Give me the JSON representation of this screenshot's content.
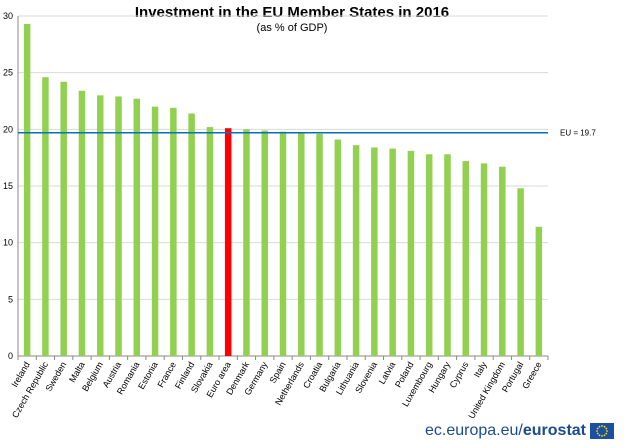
{
  "chart_data": {
    "type": "bar",
    "title": "Investment in the EU Member States in 2016",
    "subtitle": "(as % of GDP)",
    "categories": [
      "Ireland",
      "Czech Republic",
      "Sweden",
      "Malta",
      "Belgium",
      "Austria",
      "Romania",
      "Estonia",
      "France",
      "Finland",
      "Slovakia",
      "Euro area",
      "Denmark",
      "Germany",
      "Spain",
      "Netherlands",
      "Croatia",
      "Bulgaria",
      "Lithuania",
      "Slovenia",
      "Latvia",
      "Poland",
      "Luxembourg",
      "Hungary",
      "Cyprus",
      "Italy",
      "United Kingdom",
      "Portugal",
      "Greece"
    ],
    "values": [
      29.3,
      24.6,
      24.2,
      23.4,
      23.0,
      22.9,
      22.7,
      22.0,
      21.9,
      21.4,
      20.2,
      20.1,
      20.0,
      19.9,
      19.8,
      19.7,
      19.6,
      19.1,
      18.6,
      18.4,
      18.3,
      18.1,
      17.8,
      17.8,
      17.2,
      17.0,
      16.7,
      14.8,
      11.4
    ],
    "highlight_category": "Euro area",
    "bar_color": "#92d050",
    "highlight_color": "#ff0000",
    "reference_line": {
      "value": 19.7,
      "label": "EU = 19.7",
      "color": "#0070c0"
    },
    "ylim": [
      0,
      30
    ],
    "yticks": [
      0,
      5,
      10,
      15,
      20,
      25,
      30
    ],
    "grid": true,
    "xlabel": "",
    "ylabel": ""
  },
  "footer": {
    "domain_text": "ec.europa.eu/",
    "brand_text": "eurostat"
  }
}
